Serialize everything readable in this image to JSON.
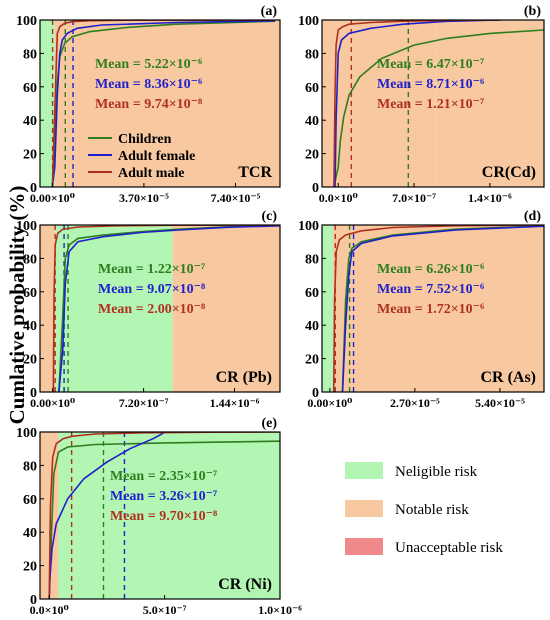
{
  "figure": {
    "ylabel": "Cumlative probability (%)"
  },
  "legend": {
    "items": [
      {
        "label": "Neligible risk",
        "color": "#b3f5b3"
      },
      {
        "label": "Notable risk",
        "color": "#f8c9a0"
      },
      {
        "label": "Unacceptable risk",
        "color": "#f08a8a"
      }
    ]
  },
  "series_styles": {
    "Children": "#2e7d1e",
    "Adult female": "#1f1fcc",
    "Adult male": "#b03020"
  },
  "chart_data": [
    {
      "panel": "(a)",
      "type": "line",
      "title": "TCR",
      "xlim": [
        -5e-06,
        9.2e-05
      ],
      "ylim": [
        0,
        100
      ],
      "xticks": [
        0,
        3.7e-05,
        7.4e-05
      ],
      "xtick_labels": [
        "0.00×10⁰",
        "3.70×10⁻⁵",
        "7.40×10⁻⁵"
      ],
      "yticks": [
        0,
        20,
        40,
        60,
        80,
        100
      ],
      "zones": [
        {
          "risk": "Neligible risk",
          "from": -5e-06,
          "to": 1e-06
        },
        {
          "risk": "Notable risk",
          "from": 1e-06,
          "to": 9.2e-05
        }
      ],
      "legend_labels": [
        "Children",
        "Adult female",
        "Adult male"
      ],
      "mean_labels": [
        "Mean = 5.22×10⁻⁶",
        "Mean = 8.36×10⁻⁶",
        "Mean = 9.74×10⁻⁸"
      ],
      "means": [
        5.22e-06,
        8.36e-06,
        9.74e-08
      ],
      "series": [
        {
          "name": "Children",
          "x": [
            0,
            1e-06,
            2e-06,
            3e-06,
            5e-06,
            8e-06,
            1.5e-05,
            3e-05,
            5e-05,
            9e-05
          ],
          "y": [
            0,
            30,
            62,
            78,
            86,
            90,
            93,
            95.5,
            97.5,
            99.3
          ]
        },
        {
          "name": "Adult female",
          "x": [
            0,
            1e-06,
            2e-06,
            3e-06,
            4e-06,
            6e-06,
            1e-05,
            2e-05,
            5e-05,
            9e-05
          ],
          "y": [
            0,
            12,
            55,
            80,
            88,
            92,
            95,
            97,
            98.5,
            99.5
          ]
        },
        {
          "name": "Adult male",
          "x": [
            0,
            1.5e-06,
            2e-06,
            3e-06,
            5e-06,
            8e-06,
            1.5e-05,
            3e-05,
            9e-05
          ],
          "y": [
            0,
            70,
            92,
            96,
            98,
            99,
            99.6,
            99.9,
            100
          ]
        }
      ]
    },
    {
      "panel": "(b)",
      "type": "line",
      "title": "CR(Cd)",
      "xlim": [
        -1.5e-07,
        1.9e-06
      ],
      "ylim": [
        0,
        100
      ],
      "xticks": [
        0,
        7e-07,
        1.4e-06
      ],
      "xtick_labels": [
        "0.0×10⁰",
        "7.0×10⁻⁷",
        "1.4×10⁻⁶"
      ],
      "yticks": [
        0,
        20,
        40,
        60,
        80,
        100
      ],
      "zones": [
        {
          "risk": "Notable risk",
          "from": -1.5e-07,
          "to": 9e-07
        },
        {
          "risk": "Neligible risk",
          "from": 9e-07,
          "to": 9e-07
        },
        {
          "risk": "Notable risk",
          "from": 9e-07,
          "to": 1.9e-06
        }
      ],
      "legend_labels": [],
      "mean_labels": [
        "Mean = 6.47×10⁻⁷",
        "Mean = 8.71×10⁻⁶",
        "Mean = 1.21×10⁻⁷"
      ],
      "means": [
        6.47e-07,
        8.71e-06,
        1.21e-07
      ],
      "series": [
        {
          "name": "Children",
          "x": [
            -4e-08,
            0,
            2e-08,
            5e-08,
            1e-07,
            2e-07,
            4e-07,
            7e-07,
            1e-06,
            1.4e-06,
            1.9e-06
          ],
          "y": [
            0,
            12,
            28,
            42,
            55,
            66,
            77,
            85,
            89,
            92,
            94
          ]
        },
        {
          "name": "Adult female",
          "x": [
            -3e-08,
            -2e-08,
            0,
            3e-08,
            1e-07,
            3e-07,
            6e-07,
            1e-06,
            1.5e-06
          ],
          "y": [
            0,
            40,
            80,
            88,
            92,
            95,
            97.5,
            99.2,
            100
          ]
        },
        {
          "name": "Adult male",
          "x": [
            -4e-08,
            -3e-08,
            -2e-08,
            0,
            4e-08,
            1e-07,
            3e-07,
            6e-07,
            1e-06,
            1.5e-06
          ],
          "y": [
            0,
            55,
            85,
            94,
            96,
            97.5,
            98.5,
            99.3,
            99.8,
            100
          ]
        }
      ]
    },
    {
      "panel": "(c)",
      "type": "line",
      "title": "CR (Pb)",
      "xlim": [
        -1e-07,
        1.8e-06
      ],
      "ylim": [
        0,
        100
      ],
      "xticks": [
        0,
        7.2e-07,
        1.44e-06
      ],
      "xtick_labels": [
        "0.00×10⁰",
        "7.20×10⁻⁷",
        "1.44×10⁻⁶"
      ],
      "yticks": [
        0,
        20,
        40,
        60,
        80,
        100
      ],
      "zones": [
        {
          "risk": "Notable risk",
          "from": -1e-07,
          "to": 2e-08
        },
        {
          "risk": "Neligible risk",
          "from": 2e-08,
          "to": 9.5e-07
        },
        {
          "risk": "Notable risk",
          "from": 9.5e-07,
          "to": 1.8e-06
        }
      ],
      "legend_labels": [],
      "mean_labels": [
        "Mean = 1.22×10⁻⁷",
        "Mean = 9.07×10⁻⁸",
        "Mean = 2.00×10⁻⁸"
      ],
      "means": [
        1.22e-07,
        9.07e-08,
        2e-08
      ],
      "series": [
        {
          "name": "Children",
          "x": [
            5e-08,
            8e-08,
            1e-07,
            1.3e-07,
            2e-07,
            4e-07,
            7e-07,
            1e-06,
            1.4e-06,
            1.8e-06
          ],
          "y": [
            0,
            45,
            80,
            88,
            92,
            94,
            96,
            97.5,
            99,
            99.7
          ]
        },
        {
          "name": "Adult female",
          "x": [
            5e-08,
            8e-08,
            1e-07,
            1.3e-07,
            2e-07,
            4e-07,
            7e-07,
            1e-06,
            1.4e-06,
            1.8e-06
          ],
          "y": [
            0,
            25,
            65,
            84,
            90,
            93,
            95.5,
            97,
            98.7,
            99.5
          ]
        },
        {
          "name": "Adult male",
          "x": [
            5e-09,
            1.2e-08,
            2e-08,
            4e-08,
            8e-08,
            2e-07,
            5e-07,
            1e-06,
            1.8e-06
          ],
          "y": [
            0,
            60,
            88,
            95,
            97.5,
            98.8,
            99.5,
            99.9,
            100
          ]
        }
      ]
    },
    {
      "panel": "(d)",
      "type": "line",
      "title": "CR (As)",
      "xlim": [
        -2.5e-06,
        6.8e-05
      ],
      "ylim": [
        0,
        100
      ],
      "xticks": [
        0,
        2.7e-05,
        5.4e-05
      ],
      "xtick_labels": [
        "0.00×10⁰",
        "2.70×10⁻⁵",
        "5.40×10⁻⁵"
      ],
      "yticks": [
        0,
        20,
        40,
        60,
        80,
        100
      ],
      "zones": [
        {
          "risk": "Neligible risk",
          "from": -2.5e-06,
          "to": 1e-06
        },
        {
          "risk": "Notable risk",
          "from": 1e-06,
          "to": 6.8e-05
        }
      ],
      "legend_labels": [],
      "mean_labels": [
        "Mean = 6.26×10⁻⁶",
        "Mean = 7.52×10⁻⁶",
        "Mean = 1.72×10⁻⁶"
      ],
      "means": [
        6.26e-06,
        7.52e-06,
        1.72e-06
      ],
      "series": [
        {
          "name": "Children",
          "x": [
            4e-06,
            5e-06,
            6e-06,
            7e-06,
            1e-05,
            2e-05,
            4e-05,
            6.8e-05
          ],
          "y": [
            0,
            55,
            80,
            86,
            90,
            94,
            97.5,
            99.5
          ]
        },
        {
          "name": "Adult female",
          "x": [
            4e-06,
            5e-06,
            6e-06,
            7e-06,
            1e-05,
            2e-05,
            4e-05,
            6.8e-05
          ],
          "y": [
            0,
            40,
            70,
            84,
            89,
            93.5,
            97,
            99.3
          ]
        },
        {
          "name": "Adult male",
          "x": [
            1.2e-06,
            1.5e-06,
            2e-06,
            3e-06,
            5e-06,
            1e-05,
            2e-05,
            4e-05,
            6.8e-05
          ],
          "y": [
            0,
            55,
            84,
            91,
            94,
            96.5,
            98.5,
            99.6,
            100
          ]
        }
      ]
    },
    {
      "panel": "(e)",
      "type": "line",
      "title": "CR (Ni)",
      "xlim": [
        -4e-08,
        1e-06
      ],
      "ylim": [
        0,
        100
      ],
      "xticks": [
        0,
        5e-07,
        1e-06
      ],
      "xtick_labels": [
        "0.0×10⁰",
        "5.0×10⁻⁷",
        "1.0×10⁻⁶"
      ],
      "yticks": [
        0,
        20,
        40,
        60,
        80,
        100
      ],
      "zones": [
        {
          "risk": "Notable risk",
          "from": -4e-08,
          "to": 4e-08
        },
        {
          "risk": "Neligible risk",
          "from": 4e-08,
          "to": 1e-06
        }
      ],
      "legend_labels": [],
      "mean_labels": [
        "Mean = 2.35×10⁻⁷",
        "Mean = 3.26×10⁻⁷",
        "Mean = 9.70×10⁻⁸"
      ],
      "means": [
        2.35e-07,
        3.26e-07,
        9.7e-08
      ],
      "series": [
        {
          "name": "Children",
          "x": [
            0,
            1e-08,
            2e-08,
            4e-08,
            8e-08,
            2e-07,
            5e-07,
            1e-06
          ],
          "y": [
            0,
            40,
            75,
            88,
            91,
            92.5,
            93.5,
            94.5
          ]
        },
        {
          "name": "Adult female",
          "x": [
            0,
            3e-09,
            1.2e-08,
            3e-08,
            8e-08,
            1.5e-07,
            2.5e-07,
            3.5e-07,
            4.5e-07,
            4.9e-07,
            5e-07
          ],
          "y": [
            0,
            12,
            30,
            45,
            60,
            72,
            82,
            90,
            96,
            99,
            100
          ]
        },
        {
          "name": "Adult male",
          "x": [
            0,
            5e-09,
            1.5e-08,
            3e-08,
            6e-08,
            1e-07,
            2e-07,
            4e-07,
            7e-07,
            1e-06
          ],
          "y": [
            0,
            55,
            85,
            93,
            96,
            97.5,
            98.8,
            99.5,
            99.9,
            100
          ]
        }
      ]
    }
  ]
}
